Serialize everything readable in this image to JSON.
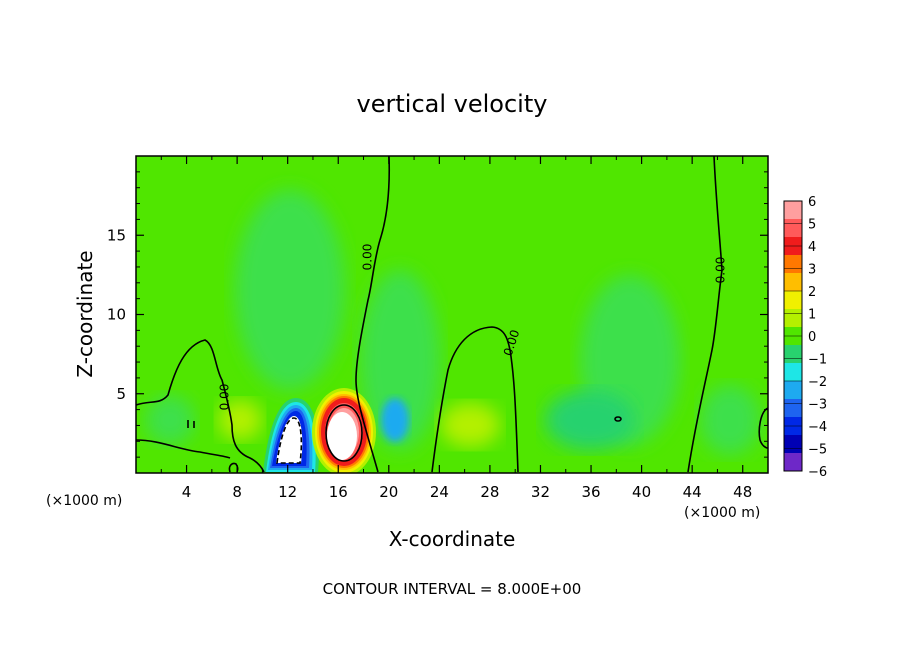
{
  "chart_data": {
    "type": "heatmap",
    "title": "vertical velocity",
    "xlabel": "X-coordinate",
    "ylabel": "Z-coordinate",
    "x_unit_left": "(×1000 m)",
    "x_unit_right": "(×1000 m)",
    "footer": "CONTOUR INTERVAL = 8.000E+00",
    "xlim": [
      0,
      50
    ],
    "ylim": [
      0,
      20
    ],
    "xticks": [
      "4",
      "8",
      "12",
      "16",
      "20",
      "24",
      "28",
      "32",
      "36",
      "40",
      "44",
      "48"
    ],
    "yticks": [
      "5",
      "10",
      "15"
    ],
    "colorbar": {
      "labels": [
        "6",
        "5",
        "4",
        "3",
        "2",
        "1",
        "0",
        "−1",
        "−2",
        "−3",
        "−4",
        "−5",
        "−6"
      ],
      "colors": [
        "#ff9f9f",
        "#ff5a5a",
        "#f01c1c",
        "#ff7800",
        "#ffbe00",
        "#f0f000",
        "#b4f000",
        "#50e600",
        "#28d26e",
        "#1ee6e6",
        "#1eaaf0",
        "#1e64f0",
        "#0028e6",
        "#0000b4",
        "#6e28c8"
      ]
    },
    "contour_label": "0.00",
    "features": [
      {
        "kind": "updraft",
        "x": 16.5,
        "z": 2.3,
        "peak": 8
      },
      {
        "kind": "downdraft",
        "x": 12.2,
        "z": 2.2,
        "peak": -8
      },
      {
        "kind": "weak_downdraft",
        "x": 20.5,
        "z": 3.5,
        "peak": -2
      },
      {
        "kind": "weak_downdraft",
        "x": 37,
        "z": 3,
        "peak": -1
      }
    ]
  }
}
